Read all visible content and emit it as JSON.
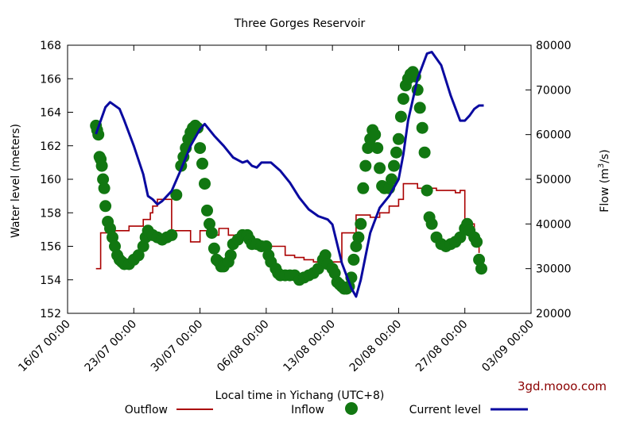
{
  "chart_data": {
    "type": "line",
    "title": "Three Gorges Reservoir",
    "xlabel": "Local time in Yichang (UTC+8)",
    "ylabel_left": "Water level (meters)",
    "ylabel_right_main": "Flow (m",
    "ylabel_right_sup": "3",
    "ylabel_right_end": "/s)",
    "credit": "3gd.mooo.com",
    "x_ticks": [
      "16/07 00:00",
      "23/07 00:00",
      "30/07 00:00",
      "06/08 00:00",
      "13/08 00:00",
      "20/08 00:00",
      "27/08 00:00",
      "03/09 00:00"
    ],
    "y_left_ticks": [
      "152",
      "154",
      "156",
      "158",
      "160",
      "162",
      "164",
      "166",
      "168"
    ],
    "y_right_ticks": [
      "20000",
      "30000",
      "40000",
      "50000",
      "60000",
      "70000",
      "80000"
    ],
    "xlim_days_from_16_07": [
      0,
      49
    ],
    "ylim_left": [
      152,
      168
    ],
    "ylim_right": [
      20000,
      80000
    ],
    "grid": false,
    "legend_position": "bottom",
    "colors": {
      "outflow": "#aa0000",
      "inflow": "#117711",
      "level": "#0a0aa0",
      "credit": "#8b0000"
    },
    "series": [
      {
        "name": "Outflow",
        "axis": "right",
        "style": "step",
        "points": [
          [
            "19/07 00:00",
            30000
          ],
          [
            "19/07 06:00",
            30000
          ],
          [
            "19/07 12:00",
            38000
          ],
          [
            "21/07 00:00",
            38500
          ],
          [
            "22/07 12:00",
            39500
          ],
          [
            "24/07 00:00",
            41000
          ],
          [
            "24/07 18:00",
            42500
          ],
          [
            "25/07 00:00",
            44000
          ],
          [
            "25/07 12:00",
            45500
          ],
          [
            "26/07 12:00",
            45500
          ],
          [
            "27/07 00:00",
            38500
          ],
          [
            "29/07 00:00",
            36000
          ],
          [
            "30/07 00:00",
            38500
          ],
          [
            "31/07 00:00",
            37500
          ],
          [
            "01/08 00:00",
            39000
          ],
          [
            "02/08 00:00",
            37500
          ],
          [
            "04/08 00:00",
            36000
          ],
          [
            "05/08 00:00",
            35500
          ],
          [
            "06/08 00:00",
            35000
          ],
          [
            "07/08 00:00",
            35000
          ],
          [
            "08/08 00:00",
            33000
          ],
          [
            "09/08 00:00",
            32500
          ],
          [
            "10/08 00:00",
            32000
          ],
          [
            "11/08 00:00",
            31500
          ],
          [
            "12/08 00:00",
            31000
          ],
          [
            "13/08 00:00",
            31500
          ],
          [
            "14/08 00:00",
            38000
          ],
          [
            "15/08 12:00",
            42000
          ],
          [
            "17/08 00:00",
            41500
          ],
          [
            "18/08 00:00",
            42500
          ],
          [
            "19/08 00:00",
            44000
          ],
          [
            "20/08 00:00",
            45500
          ],
          [
            "20/08 12:00",
            49000
          ],
          [
            "22/08 00:00",
            48000
          ],
          [
            "24/08 00:00",
            47500
          ],
          [
            "26/08 00:00",
            47000
          ],
          [
            "26/08 12:00",
            47500
          ],
          [
            "27/08 00:00",
            40000
          ],
          [
            "28/08 00:00",
            35000
          ],
          [
            "28/08 12:00",
            33500
          ]
        ]
      },
      {
        "name": "Inflow",
        "axis": "right",
        "style": "markers",
        "points": [
          [
            "19/07 00:00",
            62000
          ],
          [
            "19/07 03:00",
            61000
          ],
          [
            "19/07 06:00",
            60000
          ],
          [
            "19/07 09:00",
            55000
          ],
          [
            "19/07 12:00",
            54500
          ],
          [
            "19/07 15:00",
            53000
          ],
          [
            "19/07 18:00",
            50000
          ],
          [
            "19/07 21:00",
            48000
          ],
          [
            "20/07 00:00",
            44000
          ],
          [
            "20/07 06:00",
            40500
          ],
          [
            "20/07 12:00",
            39000
          ],
          [
            "20/07 18:00",
            37000
          ],
          [
            "21/07 00:00",
            35000
          ],
          [
            "21/07 06:00",
            33000
          ],
          [
            "21/07 12:00",
            32000
          ],
          [
            "21/07 18:00",
            31500
          ],
          [
            "22/07 00:00",
            31000
          ],
          [
            "22/07 12:00",
            31000
          ],
          [
            "23/07 00:00",
            32000
          ],
          [
            "23/07 12:00",
            33000
          ],
          [
            "24/07 00:00",
            35000
          ],
          [
            "24/07 06:00",
            37000
          ],
          [
            "24/07 12:00",
            38500
          ],
          [
            "25/07 00:00",
            37500
          ],
          [
            "25/07 12:00",
            37000
          ],
          [
            "26/07 00:00",
            36500
          ],
          [
            "26/07 12:00",
            37000
          ],
          [
            "27/07 00:00",
            37500
          ],
          [
            "27/07 12:00",
            46500
          ],
          [
            "28/07 00:00",
            53000
          ],
          [
            "28/07 06:00",
            55000
          ],
          [
            "28/07 12:00",
            57000
          ],
          [
            "28/07 18:00",
            59000
          ],
          [
            "29/07 00:00",
            60500
          ],
          [
            "29/07 06:00",
            61500
          ],
          [
            "29/07 12:00",
            62000
          ],
          [
            "29/07 18:00",
            61500
          ],
          [
            "30/07 00:00",
            57000
          ],
          [
            "30/07 06:00",
            53500
          ],
          [
            "30/07 12:00",
            49000
          ],
          [
            "30/07 18:00",
            43000
          ],
          [
            "31/07 00:00",
            40000
          ],
          [
            "31/07 06:00",
            38000
          ],
          [
            "31/07 12:00",
            34500
          ],
          [
            "31/07 18:00",
            32000
          ],
          [
            "01/08 00:00",
            31500
          ],
          [
            "01/08 06:00",
            30500
          ],
          [
            "01/08 12:00",
            30500
          ],
          [
            "02/08 00:00",
            31500
          ],
          [
            "02/08 06:00",
            33000
          ],
          [
            "02/08 12:00",
            35500
          ],
          [
            "03/08 00:00",
            36500
          ],
          [
            "03/08 12:00",
            37500
          ],
          [
            "04/08 00:00",
            37500
          ],
          [
            "04/08 06:00",
            36500
          ],
          [
            "04/08 12:00",
            35500
          ],
          [
            "05/08 00:00",
            35500
          ],
          [
            "05/08 12:00",
            35000
          ],
          [
            "06/08 00:00",
            35000
          ],
          [
            "06/08 06:00",
            33000
          ],
          [
            "06/08 12:00",
            31500
          ],
          [
            "07/08 00:00",
            30000
          ],
          [
            "07/08 06:00",
            29000
          ],
          [
            "07/08 12:00",
            28500
          ],
          [
            "08/08 00:00",
            28500
          ],
          [
            "08/08 12:00",
            28500
          ],
          [
            "09/08 00:00",
            28500
          ],
          [
            "09/08 12:00",
            27500
          ],
          [
            "10/08 00:00",
            28000
          ],
          [
            "10/08 12:00",
            28500
          ],
          [
            "11/08 00:00",
            29000
          ],
          [
            "11/08 12:00",
            30000
          ],
          [
            "12/08 00:00",
            32000
          ],
          [
            "12/08 06:00",
            33000
          ],
          [
            "12/08 12:00",
            31000
          ],
          [
            "13/08 00:00",
            30000
          ],
          [
            "13/08 06:00",
            29000
          ],
          [
            "13/08 12:00",
            27000
          ],
          [
            "13/08 18:00",
            26500
          ],
          [
            "14/08 00:00",
            26000
          ],
          [
            "14/08 06:00",
            25500
          ],
          [
            "14/08 12:00",
            25500
          ],
          [
            "14/08 18:00",
            26000
          ],
          [
            "15/08 00:00",
            28000
          ],
          [
            "15/08 06:00",
            32000
          ],
          [
            "15/08 12:00",
            35000
          ],
          [
            "15/08 18:00",
            37000
          ],
          [
            "16/08 00:00",
            40000
          ],
          [
            "16/08 06:00",
            48000
          ],
          [
            "16/08 12:00",
            53000
          ],
          [
            "16/08 18:00",
            57000
          ],
          [
            "17/08 00:00",
            59000
          ],
          [
            "17/08 06:00",
            61000
          ],
          [
            "17/08 12:00",
            60000
          ],
          [
            "17/08 18:00",
            57000
          ],
          [
            "18/08 00:00",
            52500
          ],
          [
            "18/08 06:00",
            48500
          ],
          [
            "18/08 12:00",
            48000
          ],
          [
            "19/08 00:00",
            48000
          ],
          [
            "19/08 06:00",
            50000
          ],
          [
            "19/08 12:00",
            53000
          ],
          [
            "19/08 18:00",
            56000
          ],
          [
            "20/08 00:00",
            59000
          ],
          [
            "20/08 06:00",
            64000
          ],
          [
            "20/08 12:00",
            68000
          ],
          [
            "20/08 18:00",
            71000
          ],
          [
            "21/08 00:00",
            72500
          ],
          [
            "21/08 06:00",
            73500
          ],
          [
            "21/08 12:00",
            74000
          ],
          [
            "21/08 18:00",
            73000
          ],
          [
            "22/08 00:00",
            70000
          ],
          [
            "22/08 06:00",
            66000
          ],
          [
            "22/08 12:00",
            61500
          ],
          [
            "22/08 18:00",
            56000
          ],
          [
            "23/08 00:00",
            47500
          ],
          [
            "23/08 06:00",
            41500
          ],
          [
            "23/08 12:00",
            40000
          ],
          [
            "24/08 00:00",
            37000
          ],
          [
            "24/08 12:00",
            35500
          ],
          [
            "25/08 00:00",
            35000
          ],
          [
            "25/08 12:00",
            35500
          ],
          [
            "26/08 00:00",
            36000
          ],
          [
            "26/08 12:00",
            37000
          ],
          [
            "27/08 00:00",
            39000
          ],
          [
            "27/08 06:00",
            40000
          ],
          [
            "27/08 12:00",
            38500
          ],
          [
            "28/08 00:00",
            37000
          ],
          [
            "28/08 06:00",
            36000
          ],
          [
            "28/08 12:00",
            32000
          ],
          [
            "28/08 18:00",
            30000
          ]
        ]
      },
      {
        "name": "Current level",
        "axis": "left",
        "style": "line",
        "points": [
          [
            "19/07 00:00",
            162.7
          ],
          [
            "20/07 00:00",
            164.3
          ],
          [
            "20/07 12:00",
            164.6
          ],
          [
            "21/07 12:00",
            164.2
          ],
          [
            "22/07 00:00",
            163.5
          ],
          [
            "23/07 00:00",
            162.0
          ],
          [
            "24/07 00:00",
            160.3
          ],
          [
            "24/07 12:00",
            159.0
          ],
          [
            "25/07 00:00",
            158.8
          ],
          [
            "25/07 12:00",
            158.5
          ],
          [
            "26/07 00:00",
            158.7
          ],
          [
            "27/07 00:00",
            159.3
          ],
          [
            "28/07 00:00",
            160.6
          ],
          [
            "29/07 00:00",
            162.0
          ],
          [
            "30/07 00:00",
            163.0
          ],
          [
            "30/07 12:00",
            163.3
          ],
          [
            "31/07 12:00",
            162.6
          ],
          [
            "01/08 12:00",
            162.0
          ],
          [
            "02/08 12:00",
            161.3
          ],
          [
            "03/08 12:00",
            161.0
          ],
          [
            "04/08 00:00",
            161.1
          ],
          [
            "04/08 12:00",
            160.8
          ],
          [
            "05/08 00:00",
            160.7
          ],
          [
            "05/08 12:00",
            161.0
          ],
          [
            "06/08 12:00",
            161.0
          ],
          [
            "07/08 12:00",
            160.5
          ],
          [
            "08/08 12:00",
            159.8
          ],
          [
            "09/08 12:00",
            158.9
          ],
          [
            "10/08 12:00",
            158.2
          ],
          [
            "11/08 12:00",
            157.8
          ],
          [
            "12/08 12:00",
            157.6
          ],
          [
            "13/08 00:00",
            157.3
          ],
          [
            "14/08 00:00",
            155.0
          ],
          [
            "15/08 00:00",
            153.5
          ],
          [
            "15/08 12:00",
            153.0
          ],
          [
            "16/08 00:00",
            154.0
          ],
          [
            "17/08 00:00",
            156.8
          ],
          [
            "18/08 00:00",
            158.3
          ],
          [
            "19/08 00:00",
            159.0
          ],
          [
            "20/08 00:00",
            160.0
          ],
          [
            "20/08 12:00",
            161.5
          ],
          [
            "21/08 00:00",
            163.5
          ],
          [
            "22/08 00:00",
            166.0
          ],
          [
            "23/08 00:00",
            167.5
          ],
          [
            "23/08 12:00",
            167.6
          ],
          [
            "24/08 12:00",
            166.8
          ],
          [
            "25/08 12:00",
            165.0
          ],
          [
            "26/08 12:00",
            163.5
          ],
          [
            "27/08 00:00",
            163.5
          ],
          [
            "27/08 12:00",
            163.8
          ],
          [
            "28/08 00:00",
            164.2
          ],
          [
            "28/08 12:00",
            164.4
          ],
          [
            "29/08 00:00",
            164.4
          ]
        ]
      }
    ]
  }
}
